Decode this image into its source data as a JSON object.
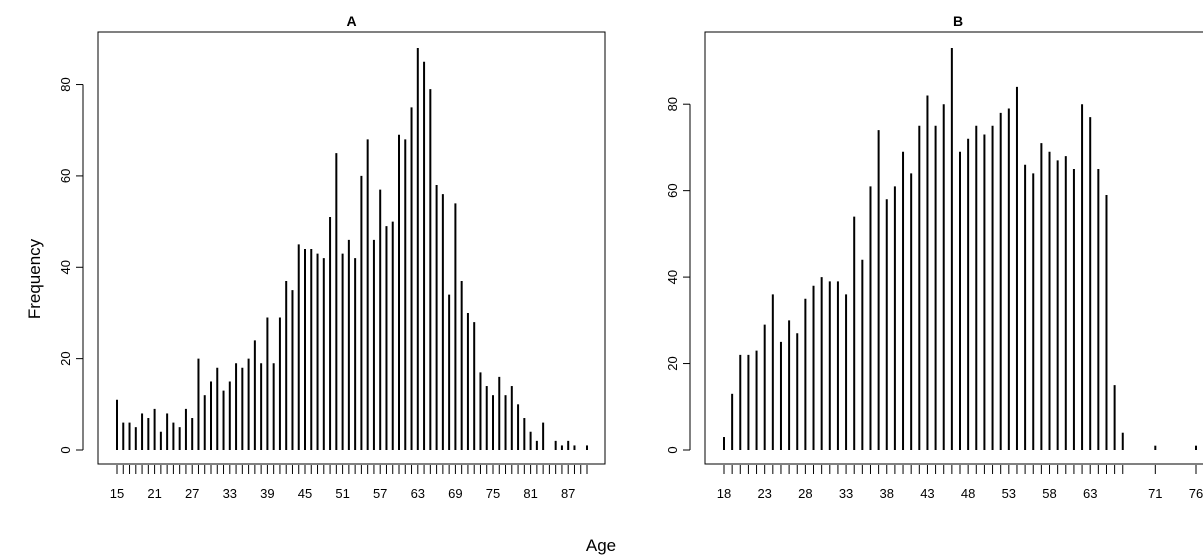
{
  "figure": {
    "xlabel": "Age",
    "ylabel": "Frequency"
  },
  "chart_data": [
    {
      "type": "bar",
      "title": "A",
      "xlabel": "Age",
      "ylabel": "Frequency",
      "x": [
        15,
        16,
        17,
        18,
        19,
        20,
        21,
        22,
        23,
        24,
        25,
        26,
        27,
        28,
        29,
        30,
        31,
        32,
        33,
        34,
        35,
        36,
        37,
        38,
        39,
        40,
        41,
        42,
        43,
        44,
        45,
        46,
        47,
        48,
        49,
        50,
        51,
        52,
        53,
        54,
        55,
        56,
        57,
        58,
        59,
        60,
        61,
        62,
        63,
        64,
        65,
        66,
        67,
        68,
        69,
        70,
        71,
        72,
        73,
        74,
        75,
        76,
        77,
        78,
        79,
        80,
        81,
        82,
        83,
        84,
        85,
        86,
        87,
        88,
        89,
        90
      ],
      "values": [
        11,
        6,
        6,
        5,
        8,
        7,
        9,
        4,
        8,
        6,
        5,
        9,
        7,
        20,
        12,
        15,
        18,
        13,
        15,
        19,
        18,
        20,
        24,
        19,
        29,
        19,
        29,
        37,
        35,
        45,
        44,
        44,
        43,
        42,
        51,
        65,
        43,
        46,
        42,
        60,
        68,
        46,
        57,
        49,
        50,
        69,
        68,
        75,
        88,
        85,
        79,
        58,
        56,
        34,
        54,
        37,
        30,
        28,
        17,
        14,
        12,
        16,
        12,
        14,
        10,
        7,
        4,
        2,
        6,
        0,
        2,
        1,
        2,
        1,
        0,
        1
      ],
      "xticks": [
        15,
        21,
        27,
        33,
        39,
        45,
        51,
        57,
        63,
        69,
        75,
        81,
        87
      ],
      "yticks": [
        0,
        20,
        40,
        60,
        80
      ],
      "xlim": [
        15,
        90
      ],
      "ylim": [
        0,
        88
      ]
    },
    {
      "type": "bar",
      "title": "B",
      "xlabel": "Age",
      "ylabel": "Frequency",
      "x": [
        18,
        19,
        20,
        21,
        22,
        23,
        24,
        25,
        26,
        27,
        28,
        29,
        30,
        31,
        32,
        33,
        34,
        35,
        36,
        37,
        38,
        39,
        40,
        41,
        42,
        43,
        44,
        45,
        46,
        47,
        48,
        49,
        50,
        51,
        52,
        53,
        54,
        55,
        56,
        57,
        58,
        59,
        60,
        61,
        62,
        63,
        64,
        65,
        66,
        67,
        71,
        76
      ],
      "values": [
        3,
        13,
        22,
        22,
        23,
        29,
        36,
        25,
        30,
        27,
        35,
        38,
        40,
        39,
        39,
        36,
        54,
        44,
        61,
        74,
        58,
        61,
        69,
        64,
        75,
        82,
        75,
        80,
        93,
        69,
        72,
        75,
        73,
        75,
        78,
        79,
        84,
        66,
        64,
        71,
        69,
        67,
        68,
        65,
        80,
        77,
        65,
        59,
        15,
        4,
        1,
        1
      ],
      "xticks": [
        18,
        23,
        28,
        33,
        38,
        43,
        48,
        53,
        58,
        63,
        71,
        76
      ],
      "yticks": [
        0,
        20,
        40,
        60,
        80
      ],
      "xlim": [
        18,
        76
      ],
      "ylim": [
        0,
        93
      ]
    }
  ]
}
